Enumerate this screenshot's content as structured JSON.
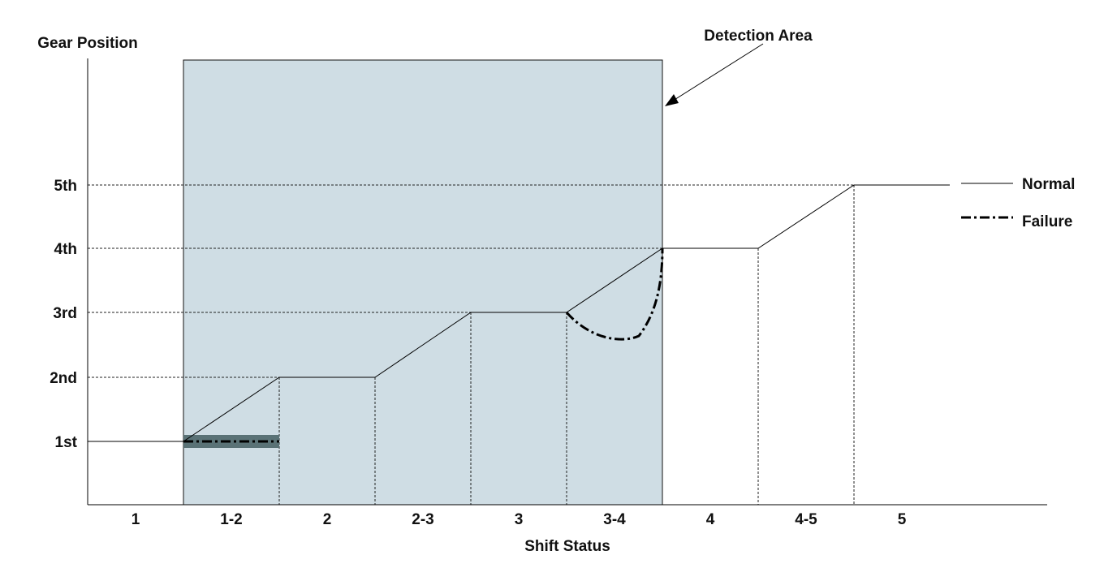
{
  "chart_data": {
    "type": "line",
    "ylabel": "Gear Position",
    "xlabel": "Shift Status",
    "y_categories": [
      "1st",
      "2nd",
      "3rd",
      "4th",
      "5th"
    ],
    "x_categories": [
      "1",
      "1-2",
      "2",
      "2-3",
      "3",
      "3-4",
      "4",
      "4-5",
      "5"
    ],
    "series": [
      {
        "name": "Normal",
        "style": "solid",
        "color": "#000000",
        "points": [
          [
            0,
            1
          ],
          [
            1,
            1
          ],
          [
            2,
            2
          ],
          [
            3,
            2
          ],
          [
            4,
            3
          ],
          [
            5,
            3
          ],
          [
            6,
            4
          ],
          [
            7,
            4
          ],
          [
            8,
            5
          ],
          [
            9,
            5
          ]
        ]
      },
      {
        "name": "Failure",
        "style": "dash-dot",
        "color": "#000000",
        "segments": [
          [
            [
              1,
              1
            ],
            [
              2,
              1
            ]
          ],
          [
            [
              5,
              3
            ],
            [
              5.5,
              2.7
            ],
            [
              6,
              4
            ]
          ]
        ]
      }
    ],
    "detection_area": {
      "label": "Detection Area",
      "x_range": [
        1,
        6
      ],
      "color": "#cfdde4"
    },
    "highlight_band": {
      "x_range": [
        1,
        2
      ],
      "y": 1,
      "color": "#5a7276"
    },
    "legend": {
      "placement": "right",
      "entries": [
        "Normal",
        "Failure"
      ]
    }
  }
}
